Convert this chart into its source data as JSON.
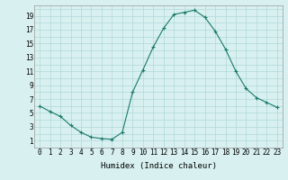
{
  "x": [
    0,
    1,
    2,
    3,
    4,
    5,
    6,
    7,
    8,
    9,
    10,
    11,
    12,
    13,
    14,
    15,
    16,
    17,
    18,
    19,
    20,
    21,
    22,
    23
  ],
  "y": [
    6.0,
    5.2,
    4.5,
    3.2,
    2.2,
    1.5,
    1.3,
    1.2,
    2.2,
    8.0,
    11.2,
    14.5,
    17.2,
    19.2,
    19.5,
    19.8,
    18.8,
    16.8,
    14.2,
    11.0,
    8.5,
    7.2,
    6.5,
    5.8
  ],
  "line_color": "#1a7a6a",
  "marker": "+",
  "marker_size": 3,
  "bg_color": "#d8f0f0",
  "grid_color": "#b0d8d8",
  "xlabel": "Humidex (Indice chaleur)",
  "xlim": [
    -0.5,
    23.5
  ],
  "ylim": [
    0,
    20.5
  ],
  "yticks": [
    1,
    3,
    5,
    7,
    9,
    11,
    13,
    15,
    17,
    19
  ],
  "xticks": [
    0,
    1,
    2,
    3,
    4,
    5,
    6,
    7,
    8,
    9,
    10,
    11,
    12,
    13,
    14,
    15,
    16,
    17,
    18,
    19,
    20,
    21,
    22,
    23
  ],
  "label_fontsize": 6.5,
  "tick_fontsize": 5.5
}
